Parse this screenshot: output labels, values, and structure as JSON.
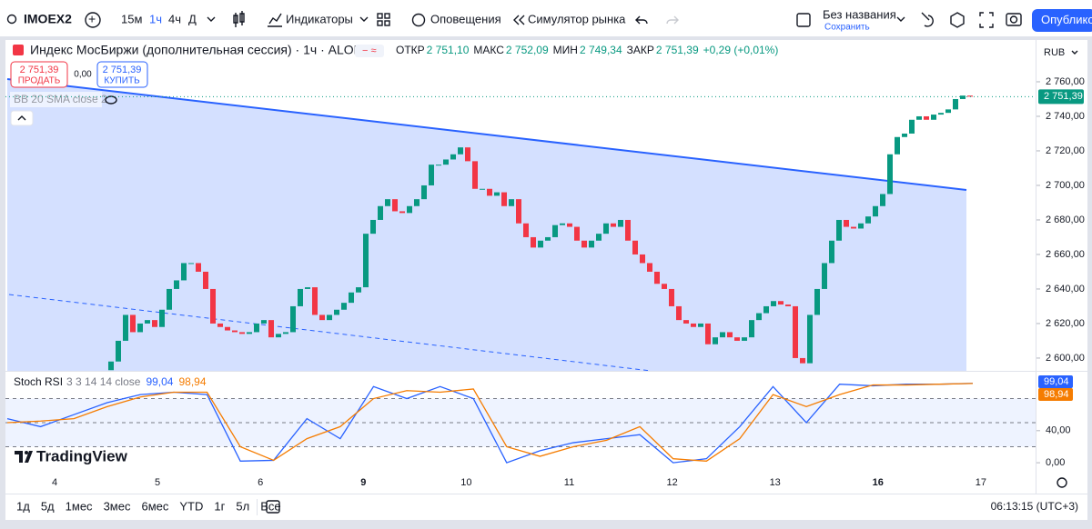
{
  "toolbar": {
    "symbol": "IMOEX2",
    "intervals": [
      "15м",
      "1ч",
      "4ч",
      "Д"
    ],
    "indicators": "Индикаторы",
    "alerts": "Оповещения",
    "replay": "Симулятор рынка",
    "layout_name": "Без названия",
    "layout_status": "Сохранить",
    "publish": "Опубликов"
  },
  "legend": {
    "title": "Индекс МосБиржи (дополнительная сессия) · 1ч · ALOR",
    "ohlc": [
      {
        "label": "ОТКР",
        "value": "2 751,10"
      },
      {
        "label": "МАКС",
        "value": "2 752,09"
      },
      {
        "label": "МИН",
        "value": "2 749,34"
      },
      {
        "label": "ЗАКР",
        "value": "2 751,39"
      }
    ],
    "change": "+0,29 (+0,01%)"
  },
  "trade": {
    "sell_price": "2 751,39",
    "sell": "ПРОДАТЬ",
    "spread": "0,00",
    "buy_price": "2 751,39",
    "buy": "КУПИТЬ"
  },
  "indicator": "BB 20 SMA close 2",
  "currency": "RUB",
  "chart_data": {
    "type": "candlestick",
    "first_open": 2593,
    "closes": [
      2598,
      2610,
      2625,
      2615,
      2620,
      2622,
      2618,
      2628,
      2640,
      2645,
      2655,
      2655,
      2650,
      2640,
      2620,
      2618,
      2616,
      2615,
      2614,
      2615,
      2620,
      2622,
      2612,
      2614,
      2615,
      2630,
      2640,
      2641,
      2625,
      2622,
      2625,
      2628,
      2632,
      2638,
      2641,
      2672,
      2680,
      2688,
      2692,
      2685,
      2684,
      2688,
      2692,
      2700,
      2712,
      2712,
      2715,
      2718,
      2722,
      2714,
      2698,
      2698,
      2694,
      2696,
      2688,
      2692,
      2678,
      2670,
      2664,
      2668,
      2670,
      2677,
      2678,
      2676,
      2668,
      2664,
      2668,
      2672,
      2678,
      2676,
      2680,
      2668,
      2660,
      2655,
      2650,
      2643,
      2640,
      2630,
      2622,
      2620,
      2618,
      2620,
      2608,
      2612,
      2615,
      2612,
      2610,
      2612,
      2622,
      2626,
      2630,
      2633,
      2631,
      2630,
      2600,
      2597,
      2625,
      2640,
      2655,
      2668,
      2680,
      2676,
      2675,
      2678,
      2682,
      2688,
      2695,
      2718,
      2728,
      2730,
      2738,
      2740,
      2738,
      2741,
      2742,
      2744,
      2750,
      2752,
      2751.39
    ],
    "ylim": [
      2592.6,
      2784.2
    ],
    "yticks": [
      {
        "value": 2760,
        "label": "2 760,00"
      },
      {
        "value": 2740,
        "label": "2 740,00"
      },
      {
        "value": 2720,
        "label": "2 720,00"
      },
      {
        "value": 2700,
        "label": "2 700,00"
      },
      {
        "value": 2680,
        "label": "2 680,00"
      },
      {
        "value": 2660,
        "label": "2 660,00"
      },
      {
        "value": 2640,
        "label": "2 640,00"
      },
      {
        "value": 2620,
        "label": "2 620,00"
      },
      {
        "value": 2600,
        "label": "2 600,00"
      }
    ],
    "last_price": {
      "value": 2751.39,
      "label": "2 751,39"
    },
    "up_color": "#089981",
    "down_color": "#f23645"
  },
  "stoch_rsi": {
    "type": "line",
    "title": "Stoch RSI",
    "params": "3 3 14 14 close",
    "ylim": [
      -10.1,
      113.5
    ],
    "yticks": [
      {
        "value": 40,
        "label": "40,00"
      },
      {
        "value": 0,
        "label": "0,00"
      }
    ],
    "levels": [
      80,
      50,
      20
    ],
    "series": [
      {
        "color": "#2962ff",
        "values": [
          55,
          45,
          60,
          75,
          85,
          88,
          85,
          2,
          3,
          55,
          30,
          95,
          80,
          95,
          80,
          0,
          15,
          25,
          30,
          35,
          0,
          5,
          45,
          95,
          50,
          98,
          96,
          98,
          98,
          99.04
        ],
        "last_label": "99,04"
      },
      {
        "color": "#f57c00",
        "values": [
          50,
          52,
          55,
          70,
          82,
          88,
          88,
          20,
          3,
          30,
          45,
          80,
          90,
          88,
          92,
          20,
          8,
          20,
          28,
          45,
          5,
          2,
          30,
          85,
          70,
          85,
          97,
          97,
          98,
          98.94
        ],
        "last_label": "98,94"
      }
    ]
  },
  "time_axis": [
    "4",
    "5",
    "6",
    "9",
    "10",
    "11",
    "12",
    "13",
    "16",
    "17"
  ],
  "ranges": [
    "1д",
    "5д",
    "1мес",
    "3мес",
    "6мес",
    "YTD",
    "1г",
    "5л",
    "Все"
  ],
  "clock": "06:13:15 (UTC+3)",
  "brand": "TradingView"
}
